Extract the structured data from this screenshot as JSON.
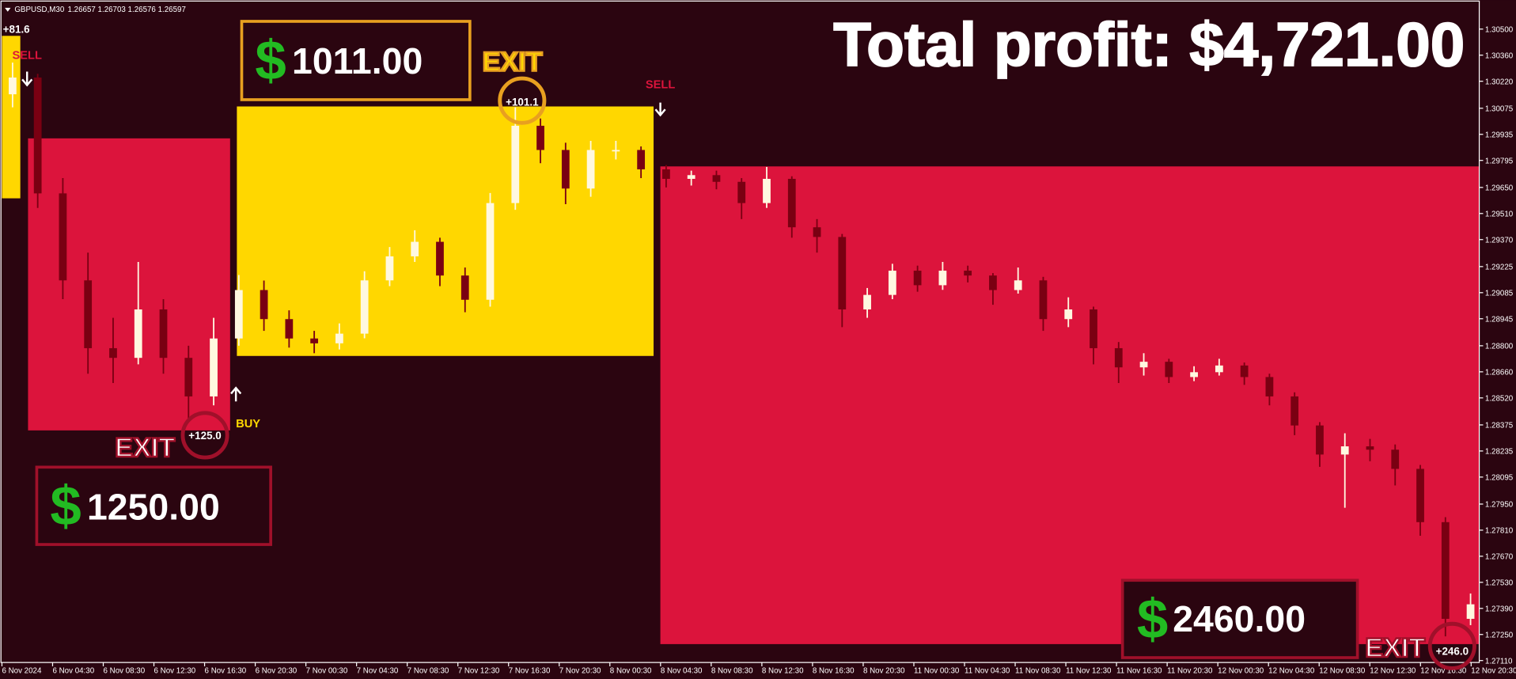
{
  "header": {
    "symbol": "GBPUSD,M30",
    "quote": "1.26657 1.26703 1.26576 1.26597"
  },
  "total_profit": "Total profit: $4,721.00",
  "price_axis": {
    "ticks": [
      {
        "value": 1.305,
        "label": "1.30500"
      },
      {
        "value": 1.3036,
        "label": "1.30360"
      },
      {
        "value": 1.3022,
        "label": "1.30220"
      },
      {
        "value": 1.30075,
        "label": "1.30075"
      },
      {
        "value": 1.29935,
        "label": "1.29935"
      },
      {
        "value": 1.29795,
        "label": "1.29795"
      },
      {
        "value": 1.2965,
        "label": "1.29650"
      },
      {
        "value": 1.2951,
        "label": "1.29510"
      },
      {
        "value": 1.2937,
        "label": "1.29370"
      },
      {
        "value": 1.29225,
        "label": "1.29225"
      },
      {
        "value": 1.29085,
        "label": "1.29085"
      },
      {
        "value": 1.28945,
        "label": "1.28945"
      },
      {
        "value": 1.288,
        "label": "1.28800"
      },
      {
        "value": 1.2866,
        "label": "1.28660"
      },
      {
        "value": 1.2852,
        "label": "1.28520"
      },
      {
        "value": 1.28375,
        "label": "1.28375"
      },
      {
        "value": 1.28235,
        "label": "1.28235"
      },
      {
        "value": 1.28095,
        "label": "1.28095"
      },
      {
        "value": 1.2795,
        "label": "1.27950"
      },
      {
        "value": 1.2781,
        "label": "1.27810"
      },
      {
        "value": 1.2767,
        "label": "1.27670"
      },
      {
        "value": 1.2753,
        "label": "1.27530"
      },
      {
        "value": 1.2739,
        "label": "1.27390"
      },
      {
        "value": 1.2725,
        "label": "1.27250"
      },
      {
        "value": 1.2711,
        "label": "1.27110"
      }
    ]
  },
  "time_axis": {
    "labels": [
      "6 Nov 2024",
      "6 Nov 04:30",
      "6 Nov 08:30",
      "6 Nov 12:30",
      "6 Nov 16:30",
      "6 Nov 20:30",
      "7 Nov 00:30",
      "7 Nov 04:30",
      "7 Nov 08:30",
      "7 Nov 12:30",
      "7 Nov 16:30",
      "7 Nov 20:30",
      "8 Nov 00:30",
      "8 Nov 04:30",
      "8 Nov 08:30",
      "8 Nov 12:30",
      "8 Nov 16:30",
      "8 Nov 20:30",
      "11 Nov 00:30",
      "11 Nov 04:30",
      "11 Nov 08:30",
      "11 Nov 12:30",
      "11 Nov 16:30",
      "11 Nov 20:30",
      "12 Nov 00:30",
      "12 Nov 04:30",
      "12 Nov 08:30",
      "12 Nov 12:30",
      "12 Nov 16:30",
      "12 Nov 20:30"
    ]
  },
  "candles": [
    [
      1.3015,
      1.3032,
      1.3008,
      1.3024
    ],
    [
      1.3024,
      1.3026,
      1.2954,
      1.29618
    ],
    [
      1.29618,
      1.297,
      1.2905,
      1.29151
    ],
    [
      1.29151,
      1.293,
      1.2865,
      1.28787
    ],
    [
      1.28787,
      1.2895,
      1.286,
      1.28735
    ],
    [
      1.28735,
      1.2925,
      1.287,
      1.28995
    ],
    [
      1.28995,
      1.2905,
      1.2865,
      1.28735
    ],
    [
      1.28735,
      1.288,
      1.284,
      1.28528
    ],
    [
      1.28528,
      1.2895,
      1.2848,
      1.28839
    ],
    [
      1.28839,
      1.2918,
      1.288,
      1.29099
    ],
    [
      1.29099,
      1.2915,
      1.2888,
      1.28943
    ],
    [
      1.28943,
      1.2899,
      1.2879,
      1.28839
    ],
    [
      1.28839,
      1.2888,
      1.2876,
      1.28813
    ],
    [
      1.28813,
      1.2892,
      1.2878,
      1.28865
    ],
    [
      1.28865,
      1.292,
      1.2884,
      1.29151
    ],
    [
      1.29151,
      1.2933,
      1.2912,
      1.2928
    ],
    [
      1.2928,
      1.2942,
      1.2925,
      1.29358
    ],
    [
      1.29358,
      1.2938,
      1.2912,
      1.29177
    ],
    [
      1.29177,
      1.2922,
      1.2898,
      1.29047
    ],
    [
      1.29047,
      1.2962,
      1.2901,
      1.29566
    ],
    [
      1.29566,
      1.3008,
      1.2953,
      1.29981
    ],
    [
      1.29981,
      1.3002,
      1.2978,
      1.29851
    ],
    [
      1.29851,
      1.2989,
      1.2956,
      1.29644
    ],
    [
      1.29644,
      1.299,
      1.296,
      1.29851
    ],
    [
      1.29851,
      1.299,
      1.298,
      1.29851
    ],
    [
      1.29851,
      1.2987,
      1.297,
      1.29747
    ],
    [
      1.29747,
      1.2977,
      1.2965,
      1.29696
    ],
    [
      1.29696,
      1.2974,
      1.2966,
      1.29716
    ],
    [
      1.29716,
      1.2974,
      1.2964,
      1.2968
    ],
    [
      1.2968,
      1.297,
      1.2948,
      1.29566
    ],
    [
      1.29566,
      1.2976,
      1.2954,
      1.29696
    ],
    [
      1.29696,
      1.2971,
      1.2938,
      1.29436
    ],
    [
      1.29436,
      1.2948,
      1.293,
      1.29384
    ],
    [
      1.29384,
      1.294,
      1.289,
      1.28995
    ],
    [
      1.28995,
      1.2911,
      1.2895,
      1.29073
    ],
    [
      1.29073,
      1.2924,
      1.2905,
      1.29203
    ],
    [
      1.29203,
      1.2923,
      1.2909,
      1.29125
    ],
    [
      1.29125,
      1.2925,
      1.291,
      1.29203
    ],
    [
      1.29203,
      1.2923,
      1.2914,
      1.29177
    ],
    [
      1.29177,
      1.2919,
      1.2902,
      1.29099
    ],
    [
      1.29099,
      1.2922,
      1.2908,
      1.29151
    ],
    [
      1.29151,
      1.2917,
      1.2888,
      1.28943
    ],
    [
      1.28943,
      1.2906,
      1.289,
      1.28995
    ],
    [
      1.28995,
      1.2901,
      1.287,
      1.28787
    ],
    [
      1.28787,
      1.2882,
      1.286,
      1.28684
    ],
    [
      1.28684,
      1.2876,
      1.2864,
      1.28714
    ],
    [
      1.28714,
      1.2873,
      1.286,
      1.28632
    ],
    [
      1.28632,
      1.2869,
      1.2861,
      1.28658
    ],
    [
      1.28658,
      1.2873,
      1.2864,
      1.28694
    ],
    [
      1.28694,
      1.2871,
      1.2859,
      1.28632
    ],
    [
      1.28632,
      1.2865,
      1.2848,
      1.28528
    ],
    [
      1.28528,
      1.2855,
      1.2832,
      1.28372
    ],
    [
      1.28372,
      1.2839,
      1.2815,
      1.28216
    ],
    [
      1.28216,
      1.2833,
      1.2793,
      1.2826
    ],
    [
      1.2826,
      1.283,
      1.2818,
      1.28242
    ],
    [
      1.28242,
      1.2827,
      1.2805,
      1.28139
    ],
    [
      1.28139,
      1.2816,
      1.2778,
      1.27853
    ],
    [
      1.27853,
      1.2788,
      1.2724,
      1.27334
    ],
    [
      1.27334,
      1.2747,
      1.273,
      1.27412
    ]
  ],
  "first_trade_pips": "+81.6",
  "signals": [
    "SELL",
    "BUY",
    "SELL"
  ],
  "exits": [
    {
      "label": "EXIT",
      "pips": "+101.1"
    },
    {
      "label": "EXIT",
      "pips": "+125.0"
    },
    {
      "label": "EXIT",
      "pips": "+246.0"
    }
  ],
  "profit_boxes": [
    {
      "currency": "$",
      "amount": "1011.00"
    },
    {
      "currency": "$",
      "amount": "1250.00"
    },
    {
      "currency": "$",
      "amount": "2460.00"
    }
  ]
}
